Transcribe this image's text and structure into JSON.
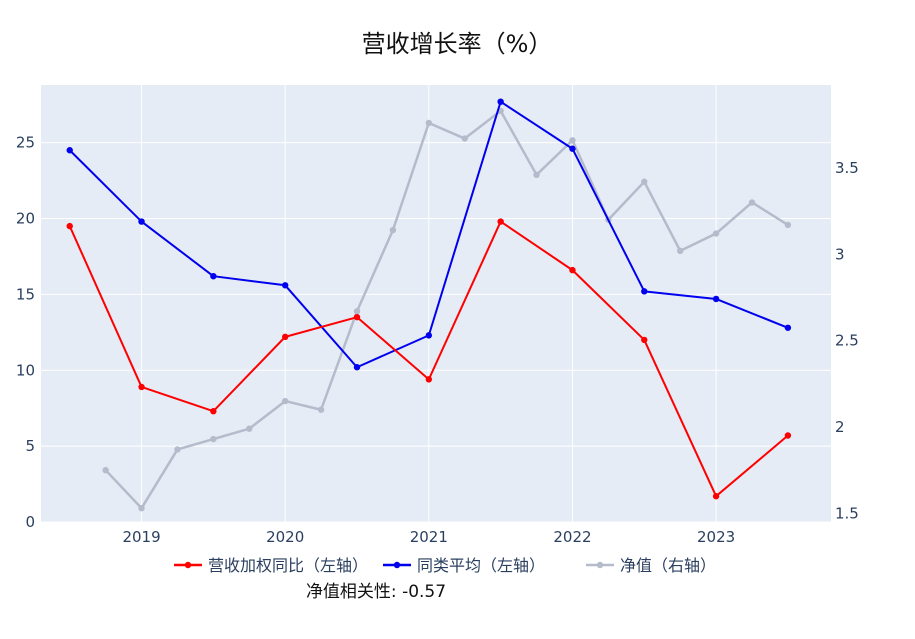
{
  "chart_data": {
    "type": "line",
    "title": "营收增长率（%）",
    "x_ticks": [
      "2019",
      "2020",
      "2021",
      "2022",
      "2023"
    ],
    "y_left_ticks": [
      "0",
      "5",
      "10",
      "15",
      "20",
      "25"
    ],
    "y_right_ticks": [
      "1.5",
      "2",
      "2.5",
      "3",
      "3.5"
    ],
    "y_left_range": [
      0,
      28.8
    ],
    "y_right_range": [
      1.45,
      3.98
    ],
    "x_range": [
      2018.3,
      2023.8
    ],
    "grid": true,
    "legend_position": "bottom",
    "series": [
      {
        "name": "营收加权同比（左轴）",
        "axis": "left",
        "color": "#ff0000",
        "x": [
          2018.5,
          2019.0,
          2019.5,
          2020.0,
          2020.5,
          2021.0,
          2021.5,
          2022.0,
          2022.5,
          2023.0,
          2023.5
        ],
        "values": [
          19.5,
          8.9,
          7.3,
          12.2,
          13.5,
          9.4,
          19.8,
          16.6,
          12.0,
          1.7,
          5.7
        ]
      },
      {
        "name": "同类平均（左轴）",
        "axis": "left",
        "color": "#0000ee",
        "x": [
          2018.5,
          2019.0,
          2019.5,
          2020.0,
          2020.5,
          2021.0,
          2021.5,
          2022.0,
          2022.5,
          2023.0,
          2023.5
        ],
        "values": [
          24.5,
          19.8,
          16.2,
          15.6,
          10.2,
          12.3,
          27.7,
          24.6,
          15.2,
          14.7,
          12.8
        ]
      },
      {
        "name": "净值（右轴）",
        "axis": "right",
        "color": "#b4bccb",
        "x": [
          2018.75,
          2019.0,
          2019.25,
          2019.5,
          2019.75,
          2020.0,
          2020.25,
          2020.5,
          2020.75,
          2021.0,
          2021.25,
          2021.5,
          2021.75,
          2022.0,
          2022.25,
          2022.5,
          2022.75,
          2023.0,
          2023.25,
          2023.5
        ],
        "values": [
          1.75,
          1.53,
          1.87,
          1.93,
          1.99,
          2.15,
          2.1,
          2.67,
          3.14,
          3.76,
          3.67,
          3.83,
          3.46,
          3.66,
          3.2,
          3.42,
          3.02,
          3.12,
          3.3,
          3.17
        ]
      }
    ],
    "annotation": "净值相关性: -0.57"
  }
}
